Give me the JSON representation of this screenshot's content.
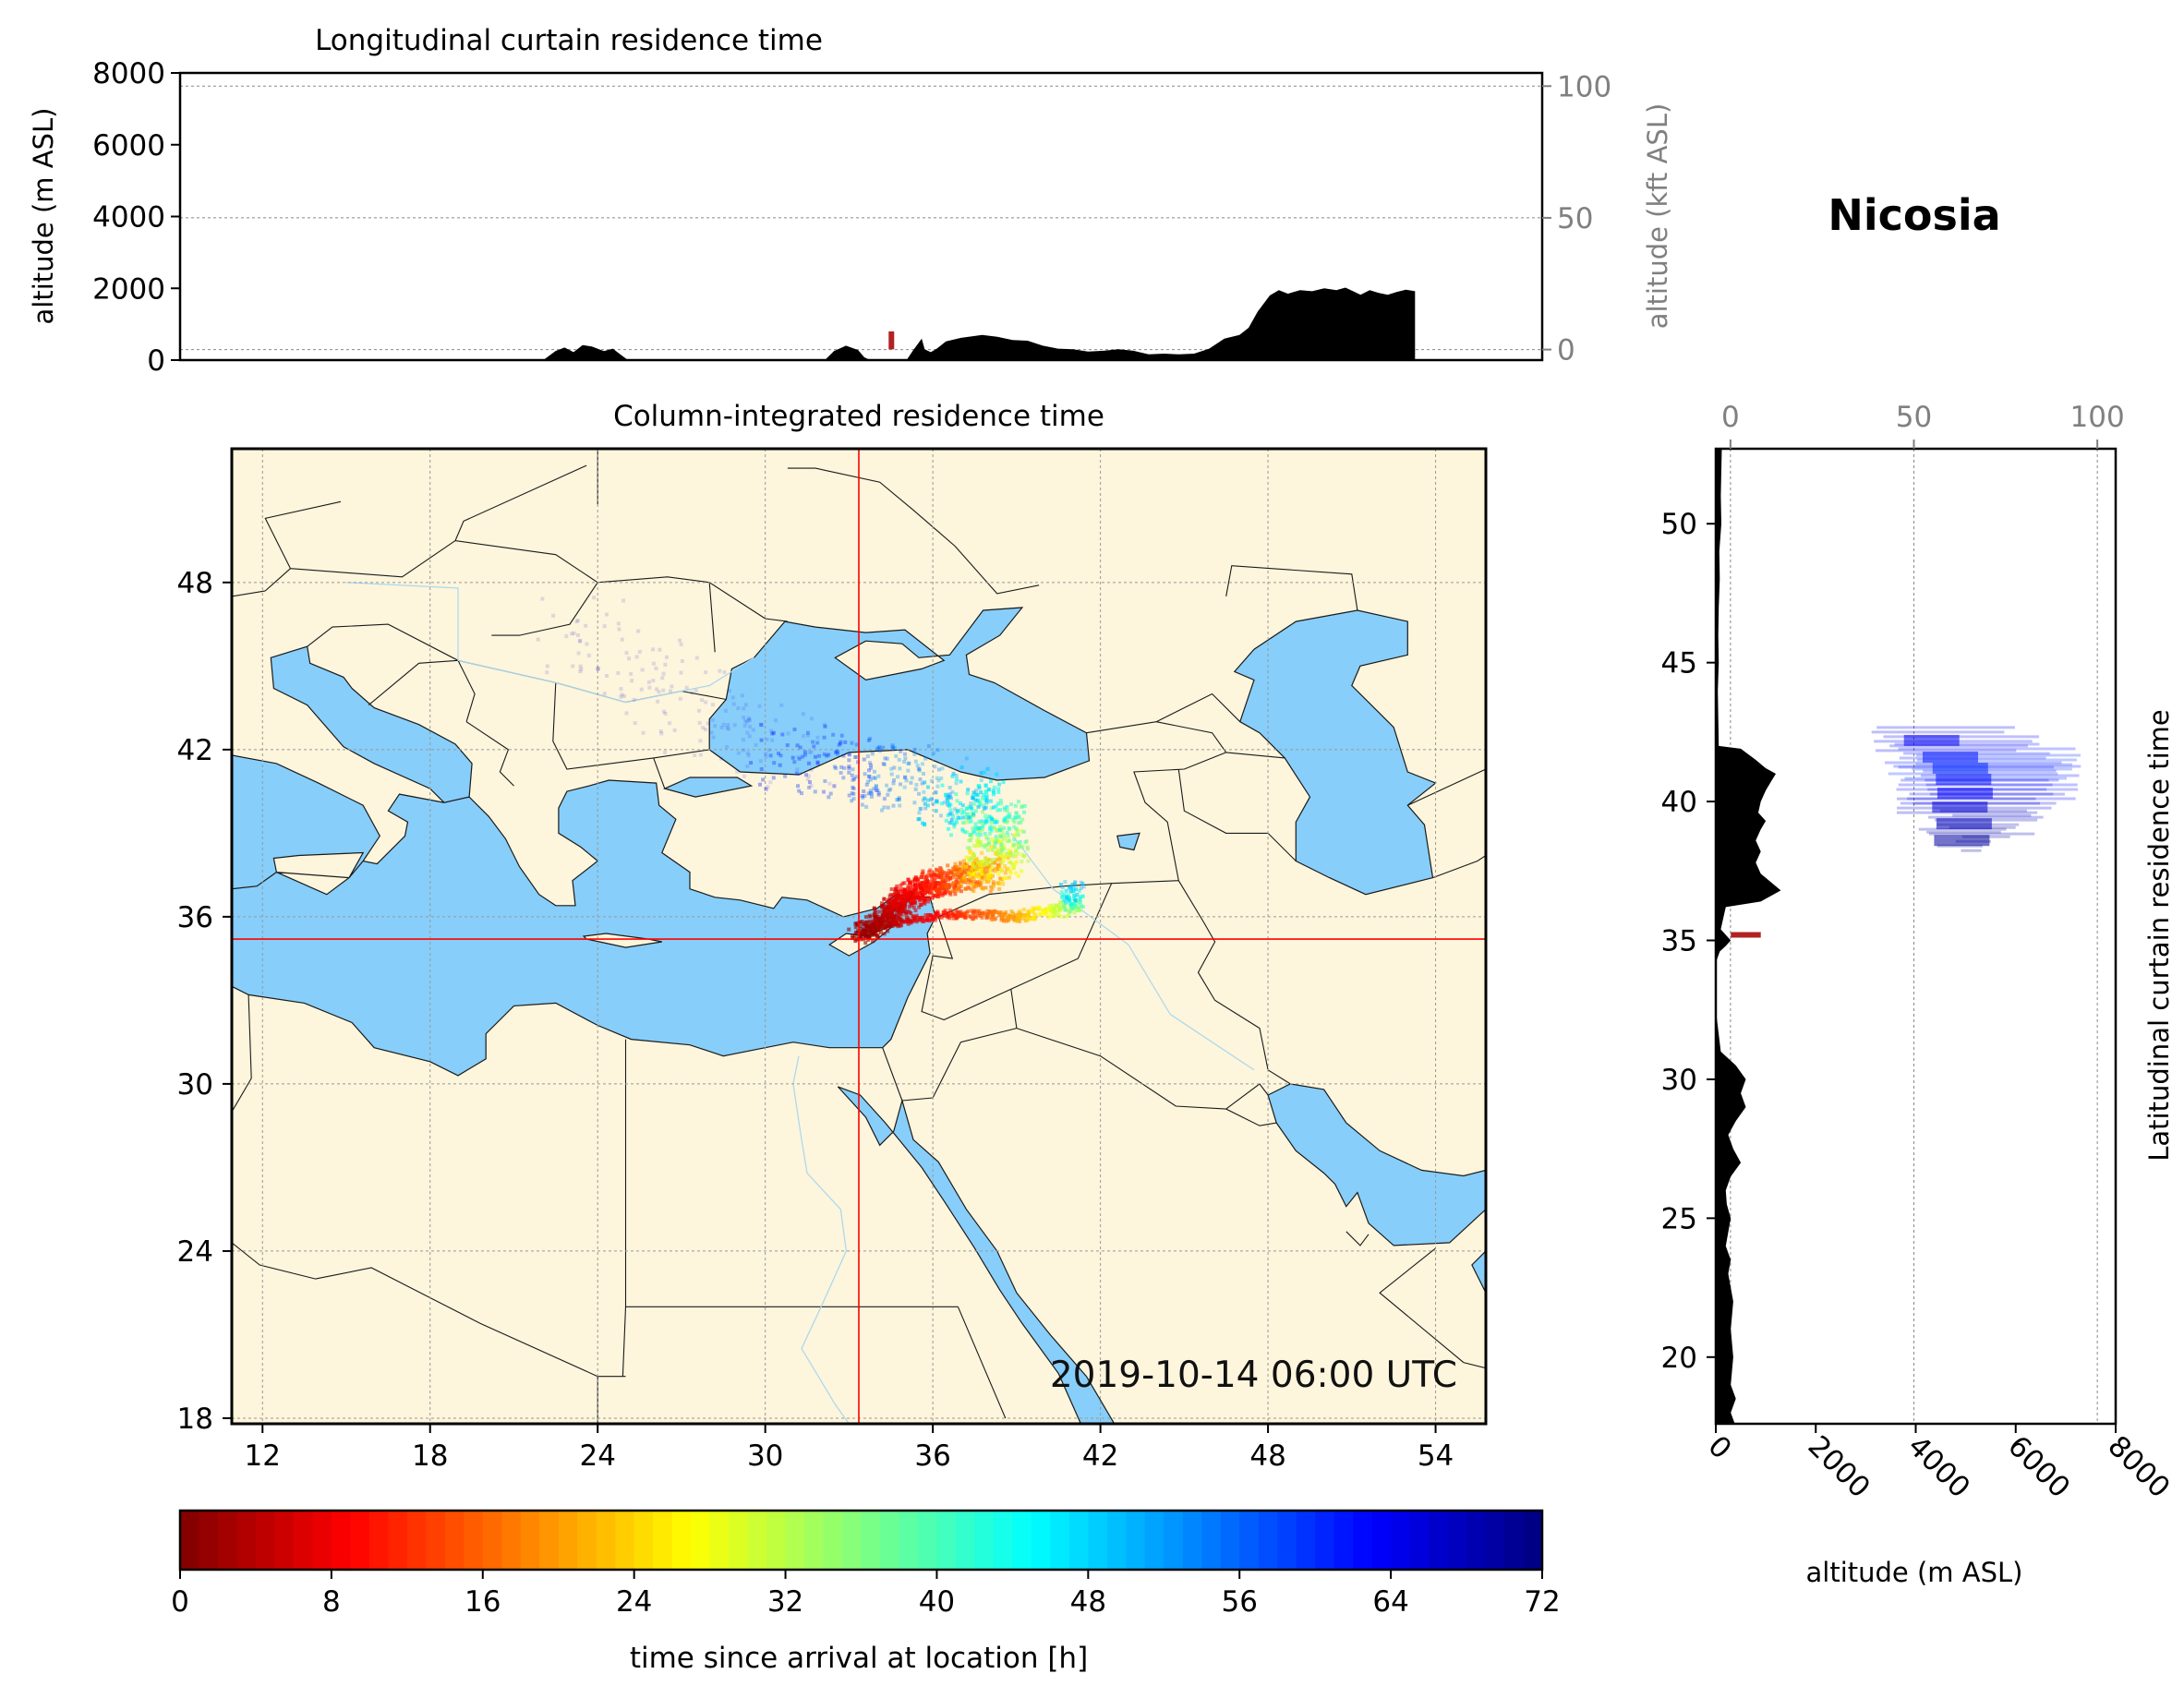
{
  "station": "Nicosia",
  "map_timestamp": "2019-10-14 06:00 UTC",
  "colors": {
    "sea": "#87cefa",
    "land": "#fdf5dc",
    "border": "#000000",
    "crosshair": "#ff0000",
    "terrain": "#000000"
  },
  "chart_data": [
    {
      "type": "area",
      "title": "Longitudinal curtain residence time",
      "ylabel": "altitude (m ASL)",
      "ylabel_right": "altitude (kft ASL)",
      "ylim": [
        0,
        8000
      ],
      "y2lim": [
        -4,
        105
      ],
      "yticks": [
        0,
        2000,
        4000,
        6000,
        8000
      ],
      "y2ticks": [
        0,
        50,
        100
      ],
      "xlim": [
        11,
        56
      ],
      "grid": true,
      "terrain_altitude_m": {
        "x": [
          23.0,
          23.4,
          23.7,
          24.0,
          24.3,
          24.6,
          25.0,
          25.3,
          25.6,
          25.8,
          32.3,
          32.6,
          33.0,
          33.4,
          33.6,
          33.8,
          35.0,
          35.2,
          35.5,
          35.6,
          35.8,
          36.0,
          36.3,
          36.8,
          37.5,
          38.0,
          38.5,
          39.0,
          39.5,
          40.0,
          40.5,
          41.0,
          41.5,
          42.0,
          42.5,
          43.0,
          43.5,
          44.0,
          44.5,
          45.0,
          45.5,
          46.0,
          46.3,
          46.6,
          47.0,
          47.3,
          47.6,
          48.0,
          48.4,
          48.8,
          49.2,
          49.5,
          49.8,
          50.0,
          50.3,
          50.6,
          50.9,
          51.2,
          51.5,
          51.8,
          51.8
        ],
        "altitude": [
          0,
          250,
          350,
          220,
          420,
          380,
          250,
          320,
          120,
          0,
          0,
          250,
          400,
          280,
          80,
          0,
          0,
          250,
          600,
          300,
          220,
          320,
          520,
          620,
          700,
          650,
          560,
          540,
          400,
          320,
          300,
          240,
          260,
          300,
          260,
          160,
          180,
          160,
          180,
          320,
          600,
          700,
          900,
          1350,
          1800,
          1950,
          1850,
          1950,
          1920,
          2000,
          1950,
          2020,
          1900,
          1820,
          1950,
          1870,
          1820,
          1900,
          1960,
          1920,
          0
        ]
      },
      "residence_marker": {
        "x": 34.5,
        "altitude_range": [
          300,
          800
        ],
        "color": "#b22222"
      }
    },
    {
      "type": "heatmap",
      "title": "Column-integrated residence time",
      "xlim": [
        10.9,
        55.8
      ],
      "ylim": [
        17.8,
        52.8
      ],
      "xticks": [
        12,
        18,
        24,
        30,
        36,
        42,
        48,
        54
      ],
      "yticks": [
        18,
        24,
        30,
        36,
        42,
        48
      ],
      "grid": true,
      "release_location": {
        "lon": 33.35,
        "lat": 35.2
      },
      "plume_core": [
        {
          "lon": 33.4,
          "lat": 35.3,
          "hours": 1
        },
        {
          "lon": 34.5,
          "lat": 36.2,
          "hours": 4
        },
        {
          "lon": 35.3,
          "lat": 36.9,
          "hours": 8
        },
        {
          "lon": 36.5,
          "lat": 37.3,
          "hours": 12
        },
        {
          "lon": 37.8,
          "lat": 37.5,
          "hours": 20
        },
        {
          "lon": 38.4,
          "lat": 38.5,
          "hours": 32
        },
        {
          "lon": 38.0,
          "lat": 39.7,
          "hours": 42
        },
        {
          "lon": 36.5,
          "lat": 40.5,
          "hours": 50
        },
        {
          "lon": 34.0,
          "lat": 41.2,
          "hours": 56
        },
        {
          "lon": 31.0,
          "lat": 41.8,
          "hours": 62
        },
        {
          "lon": 27.0,
          "lat": 43.5,
          "hours": 66
        },
        {
          "lon": 23.0,
          "lat": 46.5,
          "hours": 70
        }
      ],
      "plume_branch": [
        {
          "lon": 33.7,
          "lat": 35.6,
          "hours": 2
        },
        {
          "lon": 36.5,
          "lat": 36.1,
          "hours": 10
        },
        {
          "lon": 39.0,
          "lat": 36.0,
          "hours": 20
        },
        {
          "lon": 41.0,
          "lat": 36.3,
          "hours": 34
        },
        {
          "lon": 41.0,
          "lat": 37.0,
          "hours": 52
        }
      ]
    },
    {
      "type": "area",
      "ylabel_right": "Latitudinal curtain residence time",
      "xlabel": "altitude (m ASL)",
      "xlim": [
        0,
        8000
      ],
      "x2lim": [
        -4,
        105
      ],
      "xticks": [
        0,
        2000,
        4000,
        6000,
        8000
      ],
      "x2ticks": [
        0,
        50,
        100
      ],
      "ylim": [
        17.6,
        52.7
      ],
      "yticks": [
        20,
        25,
        30,
        35,
        40,
        45,
        50
      ],
      "grid": true,
      "terrain_altitude_m": {
        "lat": [
          52.7,
          51.0,
          50.0,
          49.0,
          48.0,
          47.0,
          46.0,
          45.0,
          44.0,
          43.0,
          42.0,
          41.9,
          41.5,
          41.2,
          41.0,
          40.7,
          40.4,
          40.0,
          39.6,
          39.3,
          39.0,
          38.6,
          38.2,
          37.8,
          37.4,
          37.1,
          36.8,
          36.4,
          36.2,
          35.4,
          35.2,
          35.0,
          34.8,
          34.6,
          34.2,
          32.5,
          31.0,
          30.5,
          30.0,
          29.5,
          29.0,
          28.5,
          28.0,
          27.5,
          27.0,
          26.5,
          26.0,
          25.5,
          25.0,
          24.5,
          24.0,
          23.5,
          23.0,
          22.0,
          21.0,
          20.0,
          19.0,
          18.5,
          18.0,
          17.6
        ],
        "altitude": [
          120,
          100,
          110,
          70,
          80,
          60,
          50,
          60,
          40,
          50,
          60,
          500,
          800,
          1000,
          1200,
          1100,
          1000,
          900,
          850,
          1000,
          900,
          800,
          900,
          800,
          900,
          1100,
          1300,
          900,
          200,
          100,
          200,
          300,
          200,
          80,
          0,
          0,
          100,
          400,
          600,
          500,
          600,
          400,
          250,
          350,
          500,
          300,
          200,
          220,
          300,
          250,
          200,
          300,
          250,
          350,
          300,
          350,
          300,
          400,
          300,
          380
        ]
      },
      "residence_marker": {
        "lat": 35.2,
        "altitude_range": [
          300,
          900
        ],
        "color": "#b22222"
      },
      "plume_profile": [
        {
          "lat": 42.2,
          "altitude_range": [
            3000,
            6500
          ],
          "hours": 64
        },
        {
          "lat": 41.6,
          "altitude_range": [
            3200,
            7200
          ],
          "hours": 62
        },
        {
          "lat": 41.2,
          "altitude_range": [
            3400,
            7400
          ],
          "hours": 60
        },
        {
          "lat": 40.8,
          "altitude_range": [
            3500,
            7400
          ],
          "hours": 62
        },
        {
          "lat": 40.3,
          "altitude_range": [
            3600,
            7300
          ],
          "hours": 63
        },
        {
          "lat": 39.8,
          "altitude_range": [
            3600,
            7000
          ],
          "hours": 66
        },
        {
          "lat": 39.2,
          "altitude_range": [
            4000,
            6500
          ],
          "hours": 68
        },
        {
          "lat": 38.6,
          "altitude_range": [
            4200,
            6000
          ],
          "hours": 70
        }
      ]
    }
  ],
  "colorbar": {
    "label": "time since arrival at location [h]",
    "min": 0,
    "max": 72,
    "ticks": [
      0,
      8,
      16,
      24,
      32,
      40,
      48,
      56,
      64,
      72
    ],
    "colormap": "jet_r"
  }
}
